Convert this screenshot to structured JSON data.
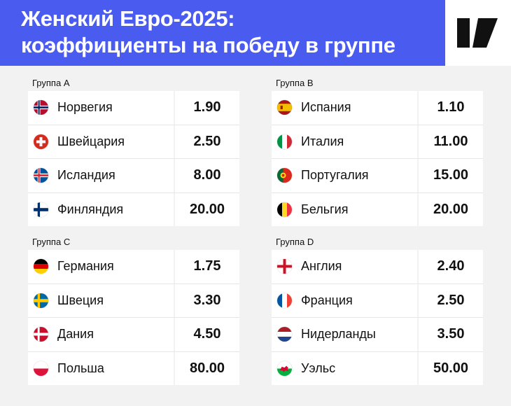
{
  "title": {
    "line1": "Женский Евро-2025:",
    "line2": "коэффициенты на победу в группе"
  },
  "groups": [
    {
      "label": "Группа A",
      "teams": [
        {
          "name": "Норвегия",
          "odds": "1.90",
          "flag": "norway-flag-icon"
        },
        {
          "name": "Швейцария",
          "odds": "2.50",
          "flag": "switzerland-flag-icon"
        },
        {
          "name": "Исландия",
          "odds": "8.00",
          "flag": "iceland-flag-icon"
        },
        {
          "name": "Финляндия",
          "odds": "20.00",
          "flag": "finland-flag-icon"
        }
      ]
    },
    {
      "label": "Группа B",
      "teams": [
        {
          "name": "Испания",
          "odds": "1.10",
          "flag": "spain-flag-icon"
        },
        {
          "name": "Италия",
          "odds": "11.00",
          "flag": "italy-flag-icon"
        },
        {
          "name": "Португалия",
          "odds": "15.00",
          "flag": "portugal-flag-icon"
        },
        {
          "name": "Бельгия",
          "odds": "20.00",
          "flag": "belgium-flag-icon"
        }
      ]
    },
    {
      "label": "Группа C",
      "teams": [
        {
          "name": "Германия",
          "odds": "1.75",
          "flag": "germany-flag-icon"
        },
        {
          "name": "Швеция",
          "odds": "3.30",
          "flag": "sweden-flag-icon"
        },
        {
          "name": "Дания",
          "odds": "4.50",
          "flag": "denmark-flag-icon"
        },
        {
          "name": "Польша",
          "odds": "80.00",
          "flag": "poland-flag-icon"
        }
      ]
    },
    {
      "label": "Группа D",
      "teams": [
        {
          "name": "Англия",
          "odds": "2.40",
          "flag": "england-flag-icon"
        },
        {
          "name": "Франция",
          "odds": "2.50",
          "flag": "france-flag-icon"
        },
        {
          "name": "Нидерланды",
          "odds": "3.50",
          "flag": "netherlands-flag-icon"
        },
        {
          "name": "Уэльс",
          "odds": "50.00",
          "flag": "wales-flag-icon"
        }
      ]
    }
  ],
  "colors": {
    "header_bg": "#4a5cf0",
    "page_bg": "#f2f2f2",
    "card_bg": "#ffffff"
  },
  "logo": "brand-logo-icon"
}
